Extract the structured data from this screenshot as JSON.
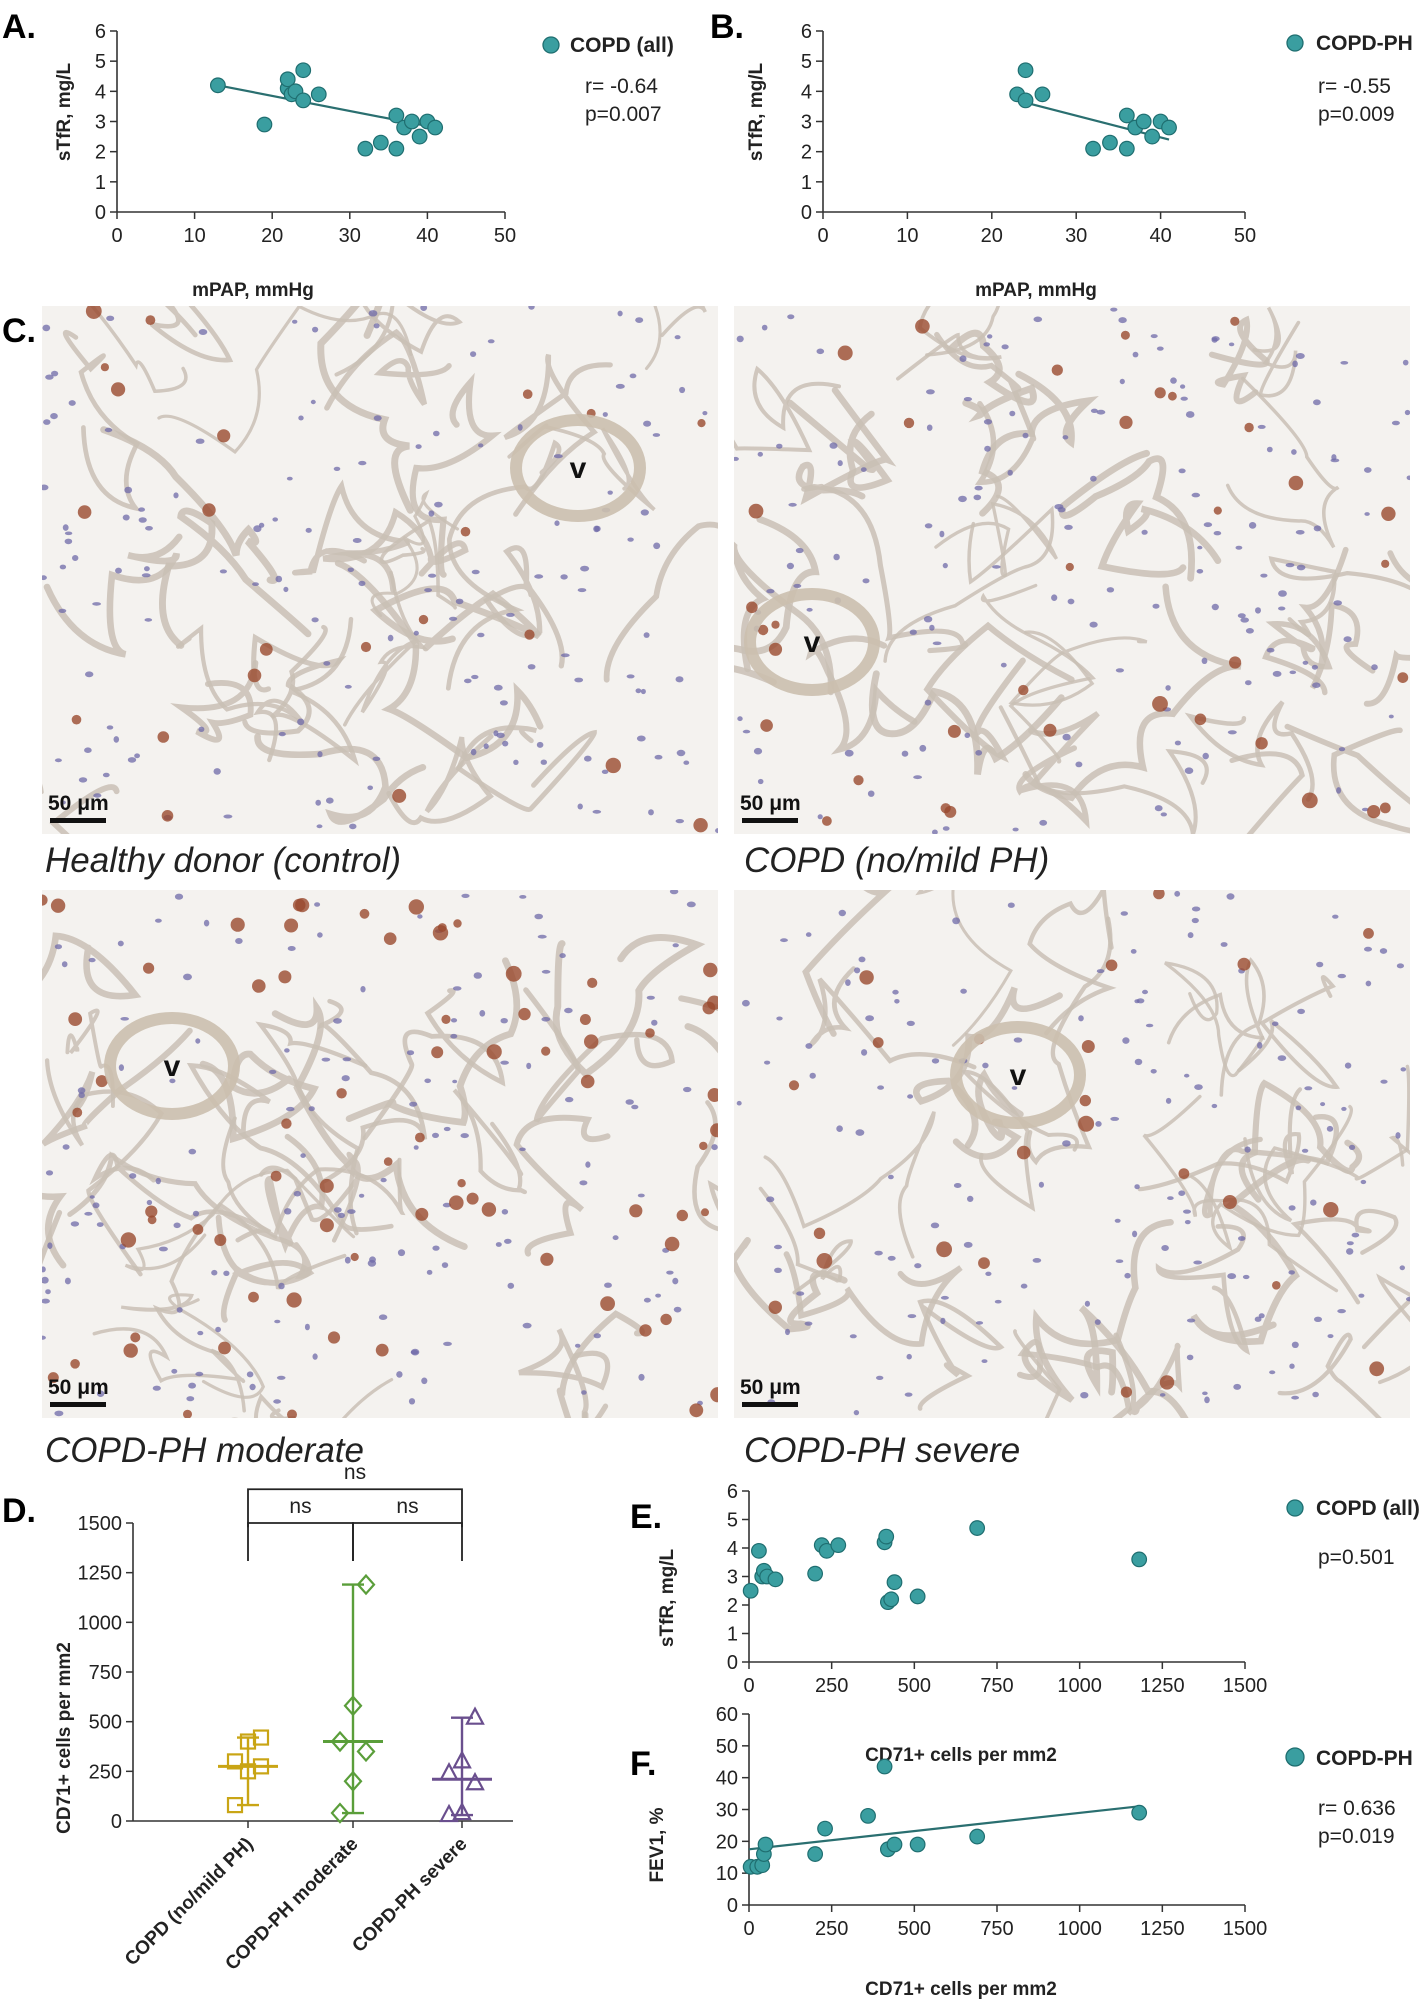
{
  "colors": {
    "teal": "#3a9ea0",
    "teal_edge": "#1f6e70",
    "trend": "#2a6f70",
    "yellow": "#c9a515",
    "green": "#5a9e3a",
    "purple": "#6a4f8e",
    "tissue_bg": "#f4f2ef"
  },
  "icons": {
    "legend_marker": "teal-circle-icon",
    "scale_bar": "scale-bar-icon",
    "vessel_marker": "vessel-letter-icon"
  },
  "chart_data": [
    {
      "id": "A",
      "panel_label": "A.",
      "type": "scatter",
      "xlabel": "mPAP, mmHg",
      "ylabel": "sTfR, mg/L",
      "xlim": [
        0,
        50
      ],
      "ylim": [
        0,
        6
      ],
      "xticks": [
        "0",
        "10",
        "20",
        "30",
        "40",
        "50"
      ],
      "yticks": [
        "0",
        "1",
        "2",
        "3",
        "4",
        "5",
        "6"
      ],
      "legend": "COPD (all)",
      "stats": [
        "r= -0.64",
        "p=0.007"
      ],
      "trendline": [
        [
          13,
          4.2
        ],
        [
          41,
          2.8
        ]
      ],
      "points": [
        [
          13,
          4.2
        ],
        [
          19,
          2.9
        ],
        [
          22,
          4.1
        ],
        [
          22,
          4.4
        ],
        [
          22.5,
          3.9
        ],
        [
          23,
          4.0
        ],
        [
          24,
          4.7
        ],
        [
          24,
          3.7
        ],
        [
          26,
          3.9
        ],
        [
          32,
          2.1
        ],
        [
          34,
          2.3
        ],
        [
          36,
          2.1
        ],
        [
          36,
          3.2
        ],
        [
          37,
          2.8
        ],
        [
          38,
          3.0
        ],
        [
          39,
          2.5
        ],
        [
          40,
          3.0
        ],
        [
          41,
          2.8
        ]
      ]
    },
    {
      "id": "B",
      "panel_label": "B.",
      "type": "scatter",
      "xlabel": "mPAP, mmHg",
      "ylabel": "sTfR, mg/L",
      "xlim": [
        0,
        50
      ],
      "ylim": [
        0,
        6
      ],
      "xticks": [
        "0",
        "10",
        "20",
        "30",
        "40",
        "50"
      ],
      "yticks": [
        "0",
        "1",
        "2",
        "3",
        "4",
        "5",
        "6"
      ],
      "legend": "COPD-PH",
      "stats": [
        "r= -0.55",
        "p=0.009"
      ],
      "trendline": [
        [
          23,
          3.7
        ],
        [
          41,
          2.4
        ]
      ],
      "points": [
        [
          23,
          3.9
        ],
        [
          24,
          4.7
        ],
        [
          24,
          3.7
        ],
        [
          26,
          3.9
        ],
        [
          32,
          2.1
        ],
        [
          34,
          2.3
        ],
        [
          36,
          2.1
        ],
        [
          36,
          3.2
        ],
        [
          37,
          2.8
        ],
        [
          38,
          3.0
        ],
        [
          39,
          2.5
        ],
        [
          40,
          3.0
        ],
        [
          41,
          2.8
        ]
      ]
    },
    {
      "id": "D",
      "panel_label": "D.",
      "type": "scatter",
      "ylabel": "CD71+ cells per mm2",
      "ylim": [
        0,
        1500
      ],
      "yticks": [
        "0",
        "250",
        "500",
        "750",
        "1000",
        "1250",
        "1500"
      ],
      "categories": [
        "COPD (no/mild PH)",
        "COPD-PH moderate",
        "COPD-PH severe"
      ],
      "series": [
        {
          "marker": "square",
          "color": "#c9a515",
          "median": 275,
          "range": [
            80,
            420
          ],
          "values": [
            80,
            250,
            275,
            300,
            400,
            420
          ]
        },
        {
          "marker": "diamond",
          "color": "#5a9e3a",
          "median": 400,
          "range": [
            40,
            1190
          ],
          "values": [
            40,
            200,
            350,
            400,
            580,
            1190
          ]
        },
        {
          "marker": "triangle",
          "color": "#6a4f8e",
          "median": 210,
          "range": [
            30,
            520
          ],
          "values": [
            30,
            40,
            190,
            240,
            300,
            520
          ]
        }
      ],
      "brackets": [
        {
          "from": 0,
          "to": 2,
          "label": "ns",
          "level": 1670
        },
        {
          "from": 0,
          "to": 1,
          "label": "ns",
          "level": 1500
        },
        {
          "from": 1,
          "to": 2,
          "label": "ns",
          "level": 1500
        }
      ]
    },
    {
      "id": "E",
      "panel_label": "E.",
      "type": "scatter",
      "xlabel": "CD71+ cells per mm2",
      "ylabel": "sTfR, mg/L",
      "xlim": [
        0,
        1500
      ],
      "ylim": [
        0,
        6
      ],
      "xticks": [
        "0",
        "250",
        "500",
        "750",
        "1000",
        "1250",
        "1500"
      ],
      "yticks": [
        "0",
        "1",
        "2",
        "3",
        "4",
        "5",
        "6"
      ],
      "legend": "COPD (all)",
      "stats": [
        "p=0.501"
      ],
      "points": [
        [
          5,
          2.5
        ],
        [
          30,
          3.9
        ],
        [
          40,
          3.0
        ],
        [
          45,
          3.2
        ],
        [
          55,
          3.0
        ],
        [
          80,
          2.9
        ],
        [
          200,
          3.1
        ],
        [
          220,
          4.1
        ],
        [
          235,
          3.9
        ],
        [
          270,
          4.1
        ],
        [
          410,
          4.2
        ],
        [
          415,
          4.4
        ],
        [
          420,
          2.1
        ],
        [
          430,
          2.2
        ],
        [
          440,
          2.8
        ],
        [
          510,
          2.3
        ],
        [
          690,
          4.7
        ],
        [
          1180,
          3.6
        ]
      ]
    },
    {
      "id": "F",
      "panel_label": "F.",
      "type": "scatter",
      "xlabel": "CD71+ cells per mm2",
      "ylabel": "FEV1, %",
      "xlim": [
        0,
        1500
      ],
      "ylim": [
        0,
        60
      ],
      "xticks": [
        "0",
        "250",
        "500",
        "750",
        "1000",
        "1250",
        "1500"
      ],
      "yticks": [
        "0",
        "10",
        "20",
        "30",
        "40",
        "50",
        "60"
      ],
      "legend": "COPD-PH",
      "stats": [
        "r= 0.636",
        "p=0.019"
      ],
      "trendline": [
        [
          0,
          17.5
        ],
        [
          1180,
          31
        ]
      ],
      "points": [
        [
          5,
          12
        ],
        [
          25,
          12
        ],
        [
          40,
          12.5
        ],
        [
          45,
          16
        ],
        [
          50,
          19
        ],
        [
          200,
          16
        ],
        [
          230,
          24
        ],
        [
          360,
          28
        ],
        [
          410,
          43.5
        ],
        [
          420,
          17.5
        ],
        [
          440,
          19
        ],
        [
          510,
          19
        ],
        [
          690,
          21.5
        ],
        [
          1180,
          29
        ]
      ]
    }
  ],
  "histology": {
    "panel_label": "C.",
    "scale_label": "50 μm",
    "vessel_letter": "v",
    "images": [
      {
        "caption": "Healthy donor (control)",
        "stain_density": 0.18
      },
      {
        "caption": "COPD (no/mild PH)",
        "stain_density": 0.3
      },
      {
        "caption": "COPD-PH moderate",
        "stain_density": 0.62
      },
      {
        "caption": "COPD-PH severe",
        "stain_density": 0.2
      }
    ]
  }
}
